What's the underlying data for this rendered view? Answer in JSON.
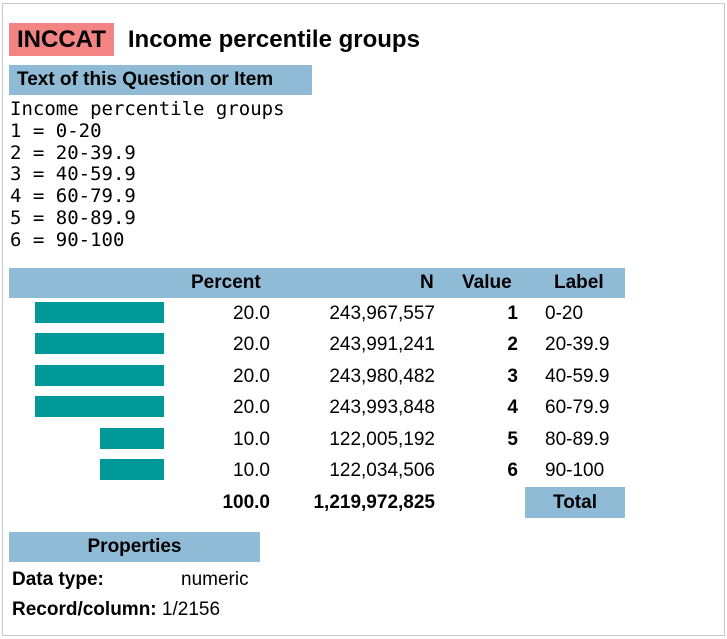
{
  "header": {
    "var_name": "INCCAT",
    "var_description": "Income percentile groups"
  },
  "question_section": {
    "heading": "Text of this Question or Item",
    "lines": [
      "Income percentile groups",
      "1 = 0-20",
      "2 = 20-39.9",
      "3 = 40-59.9",
      "4 = 60-79.9",
      "5 = 80-89.9",
      "6 = 90-100"
    ]
  },
  "table": {
    "columns": {
      "percent": "Percent",
      "n": "N",
      "value": "Value",
      "label": "Label"
    },
    "rows": [
      {
        "percent": "20.0",
        "n": "243,967,557",
        "value": "1",
        "label": "0-20",
        "share": 20.0
      },
      {
        "percent": "20.0",
        "n": "243,991,241",
        "value": "2",
        "label": "20-39.9",
        "share": 20.0
      },
      {
        "percent": "20.0",
        "n": "243,980,482",
        "value": "3",
        "label": "40-59.9",
        "share": 20.0
      },
      {
        "percent": "20.0",
        "n": "243,993,848",
        "value": "4",
        "label": "60-79.9",
        "share": 20.0
      },
      {
        "percent": "10.0",
        "n": "122,005,192",
        "value": "5",
        "label": "80-89.9",
        "share": 10.0
      },
      {
        "percent": "10.0",
        "n": "122,034,506",
        "value": "6",
        "label": "90-100",
        "share": 10.0
      }
    ],
    "totals": {
      "percent": "100.0",
      "n": "1,219,972,825",
      "label": "Total"
    },
    "bar_color": "#00999a"
  },
  "properties": {
    "heading": "Properties",
    "data_type_label": "Data type:",
    "data_type_value": "numeric",
    "record_label": "Record/column:",
    "record_value": "1/2156"
  },
  "colors": {
    "header_bg": "#8fbbd6",
    "varname_bg": "#f48484"
  }
}
